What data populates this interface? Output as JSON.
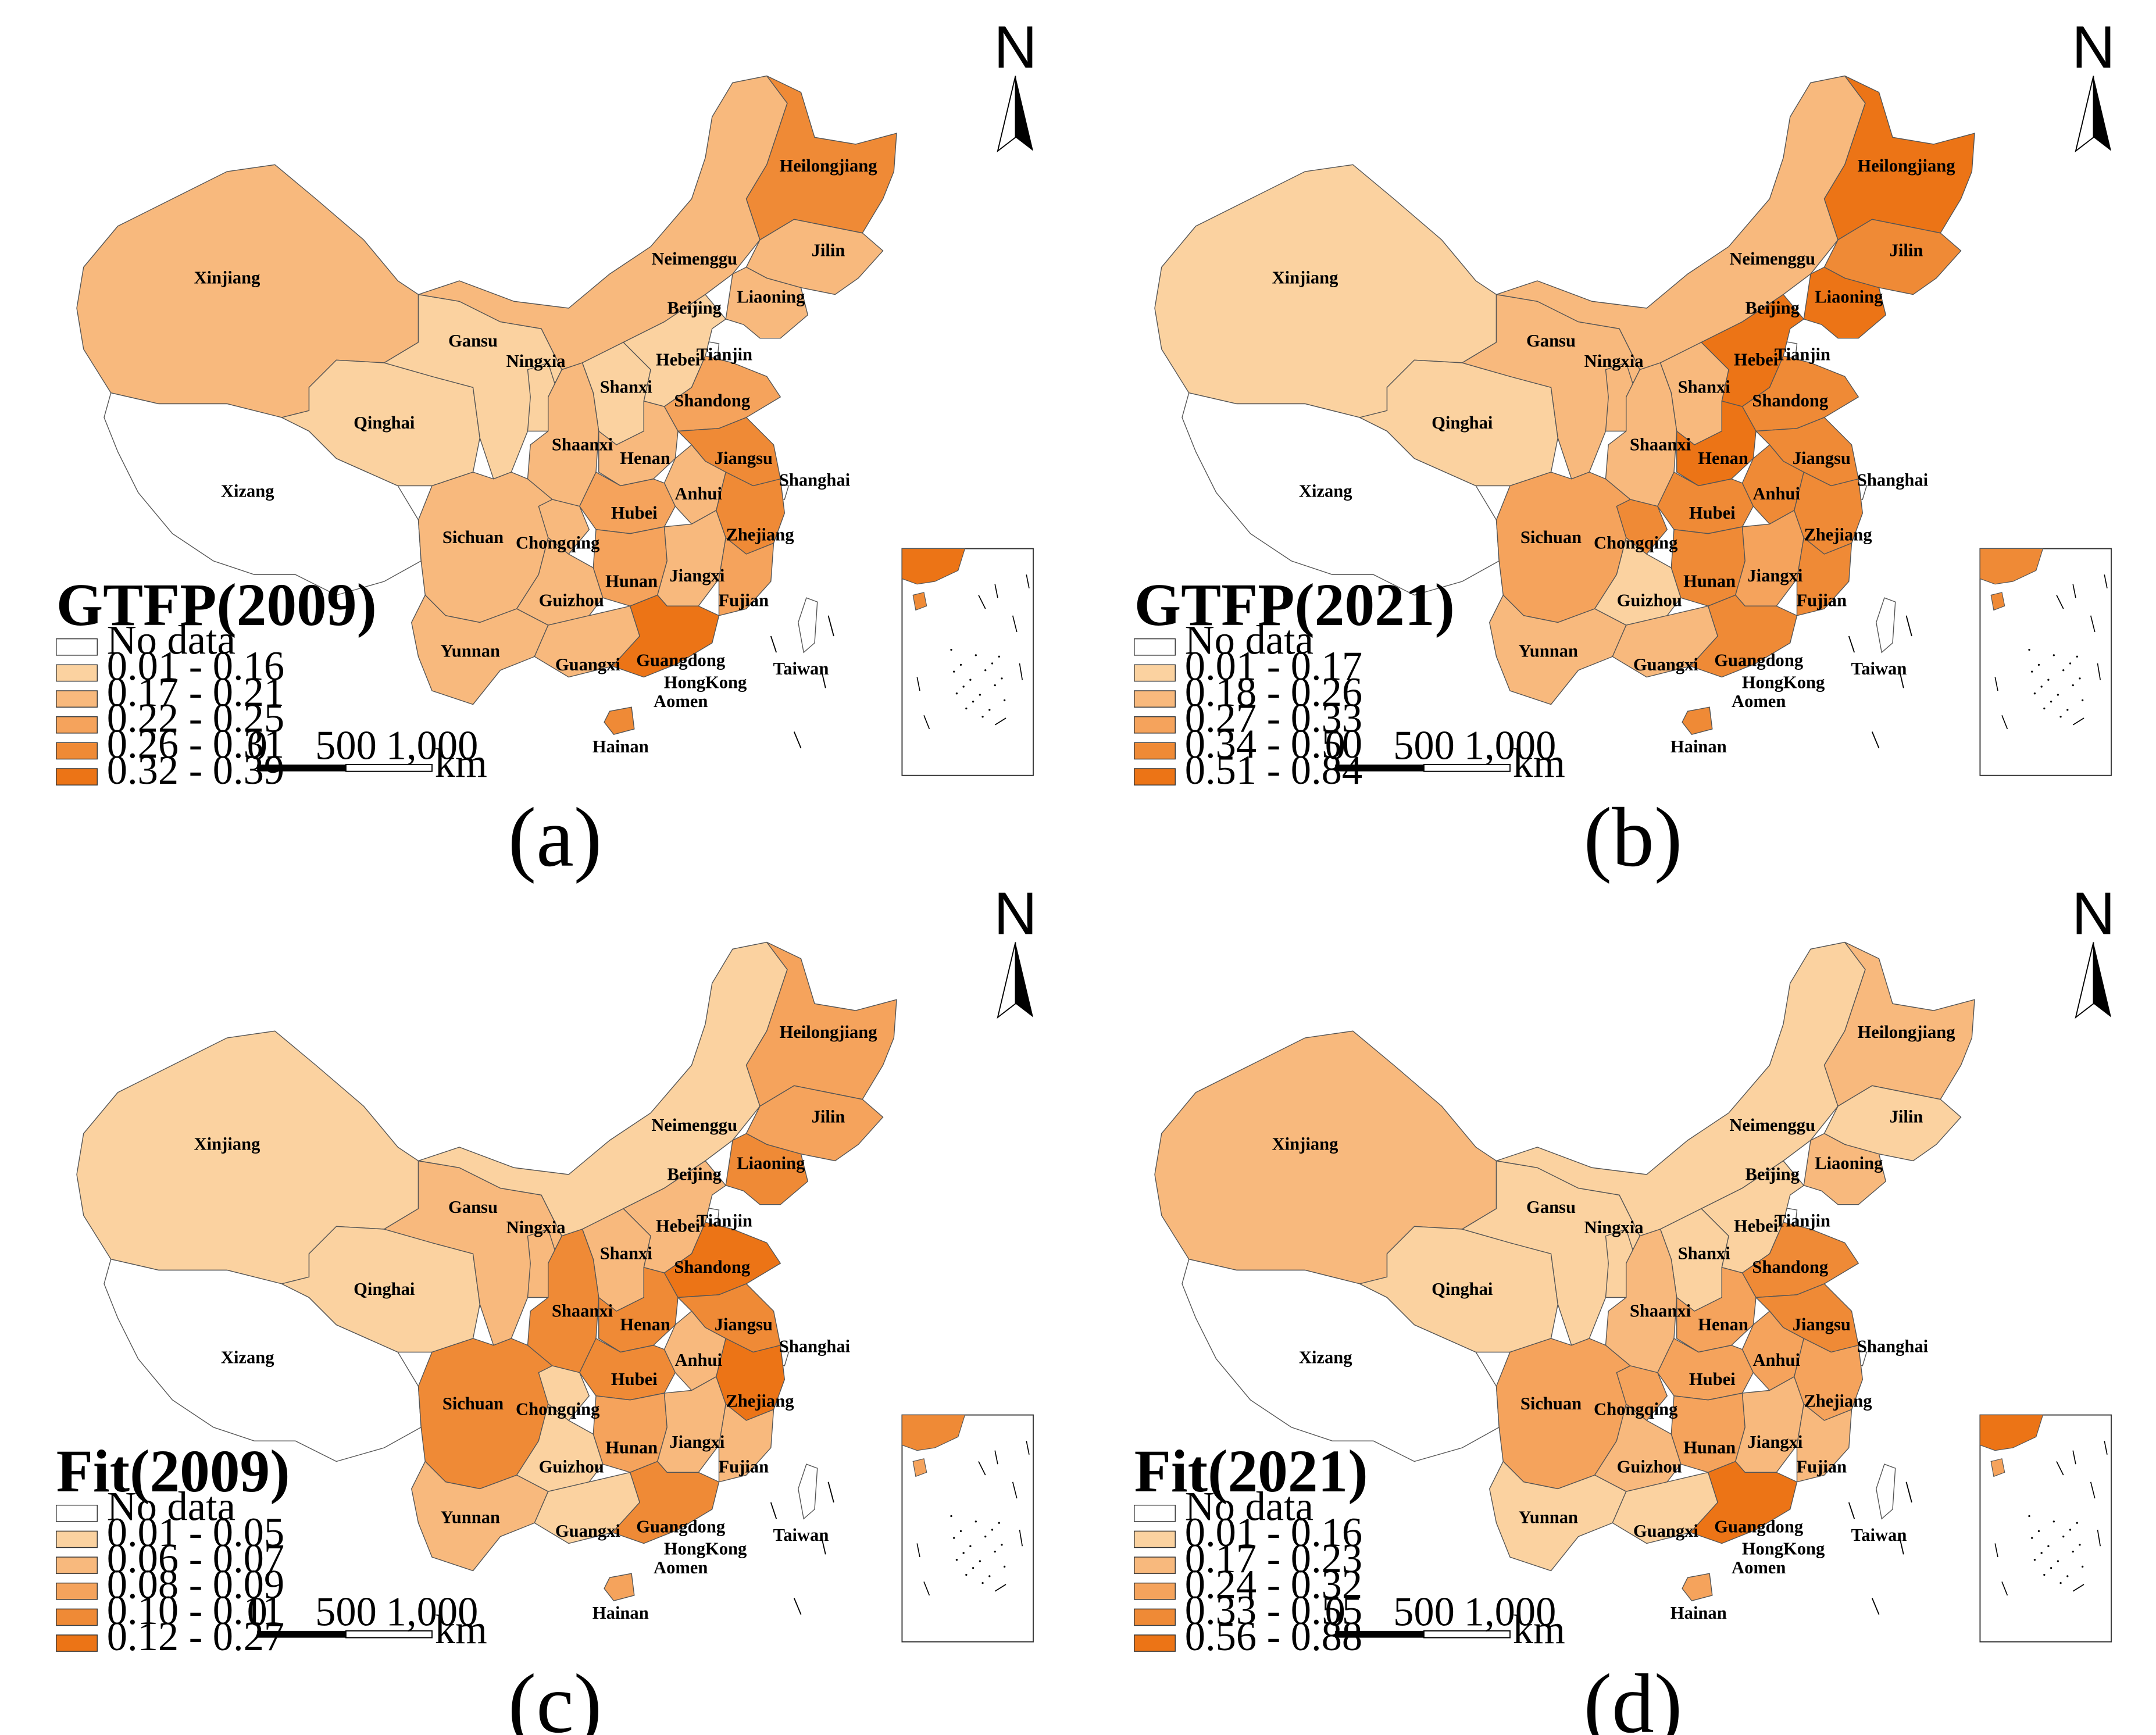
{
  "colors": {
    "no_data": "#ffffff",
    "c1": "#fbd2a0",
    "c2": "#f8b97d",
    "c3": "#f5a35c",
    "c4": "#ef8a36",
    "c5": "#ec7416",
    "border": "#555555"
  },
  "compass_label": "N",
  "scale_bar": {
    "ticks": [
      "0",
      "500",
      "1,000"
    ],
    "unit": "km"
  },
  "panels": [
    {
      "id": "a",
      "caption": "(a)",
      "legend_title": "GTFP(2009)",
      "legend": [
        {
          "label": "No data",
          "color_key": "no_data"
        },
        {
          "label": "0.01 - 0.16",
          "color_key": "c1"
        },
        {
          "label": "0.17 - 0.21",
          "color_key": "c2"
        },
        {
          "label": "0.22 - 0.25",
          "color_key": "c3"
        },
        {
          "label": "0.26 - 0.31",
          "color_key": "c4"
        },
        {
          "label": "0.32 - 0.39",
          "color_key": "c5"
        }
      ],
      "classes": {
        "Xinjiang": "c2",
        "Xizang": "no_data",
        "Qinghai": "c1",
        "Gansu": "c1",
        "Ningxia": "c1",
        "Neimenggu": "c2",
        "Heilongjiang": "c4",
        "Jilin": "c2",
        "Liaoning": "c2",
        "Beijing": "c4",
        "Hebei": "c1",
        "Shanxi": "c1",
        "Shaanxi": "c2",
        "Shandong": "c3",
        "Henan": "c2",
        "Jiangsu": "c4",
        "Anhui": "c2",
        "Hubei": "c3",
        "Sichuan": "c2",
        "Chongqing": "c2",
        "Hunan": "c3",
        "Jiangxi": "c2",
        "Zhejiang": "c4",
        "Fujian": "c3",
        "Guizhou": "c2",
        "Yunnan": "c2",
        "Guangxi": "c2",
        "Guangdong": "c5",
        "Hainan": "c4",
        "Taiwan": "no_data"
      }
    },
    {
      "id": "b",
      "caption": "(b)",
      "legend_title": "GTFP(2021)",
      "legend": [
        {
          "label": "No data",
          "color_key": "no_data"
        },
        {
          "label": "0.01 - 0.17",
          "color_key": "c1"
        },
        {
          "label": "0.18 - 0.26",
          "color_key": "c2"
        },
        {
          "label": "0.27 - 0.33",
          "color_key": "c3"
        },
        {
          "label": "0.34 - 0.50",
          "color_key": "c4"
        },
        {
          "label": "0.51 - 0.84",
          "color_key": "c5"
        }
      ],
      "classes": {
        "Xinjiang": "c1",
        "Xizang": "no_data",
        "Qinghai": "c1",
        "Gansu": "c2",
        "Ningxia": "c2",
        "Neimenggu": "c2",
        "Heilongjiang": "c5",
        "Jilin": "c4",
        "Liaoning": "c5",
        "Beijing": "c5",
        "Hebei": "c5",
        "Shanxi": "c2",
        "Shaanxi": "c2",
        "Shandong": "c4",
        "Henan": "c5",
        "Jiangsu": "c4",
        "Anhui": "c4",
        "Hubei": "c4",
        "Sichuan": "c3",
        "Chongqing": "c4",
        "Hunan": "c4",
        "Jiangxi": "c3",
        "Zhejiang": "c4",
        "Fujian": "c4",
        "Guizhou": "c1",
        "Yunnan": "c2",
        "Guangxi": "c2",
        "Guangdong": "c4",
        "Hainan": "c4",
        "Taiwan": "no_data"
      }
    },
    {
      "id": "c",
      "caption": "(c)",
      "legend_title": "Fit(2009)",
      "legend": [
        {
          "label": "No data",
          "color_key": "no_data"
        },
        {
          "label": "0.01 - 0.05",
          "color_key": "c1"
        },
        {
          "label": "0.06 - 0.07",
          "color_key": "c2"
        },
        {
          "label": "0.08 - 0.09",
          "color_key": "c3"
        },
        {
          "label": "0.10 - 0.11",
          "color_key": "c4"
        },
        {
          "label": "0.12 - 0.27",
          "color_key": "c5"
        }
      ],
      "classes": {
        "Xinjiang": "c1",
        "Xizang": "no_data",
        "Qinghai": "c1",
        "Gansu": "c2",
        "Ningxia": "c2",
        "Neimenggu": "c1",
        "Heilongjiang": "c3",
        "Jilin": "c3",
        "Liaoning": "c4",
        "Beijing": "c4",
        "Hebei": "c2",
        "Shanxi": "c2",
        "Shaanxi": "c4",
        "Shandong": "c5",
        "Henan": "c4",
        "Jiangsu": "c4",
        "Anhui": "c2",
        "Hubei": "c4",
        "Sichuan": "c4",
        "Chongqing": "c1",
        "Hunan": "c3",
        "Jiangxi": "c2",
        "Zhejiang": "c5",
        "Fujian": "c2",
        "Guizhou": "c1",
        "Yunnan": "c2",
        "Guangxi": "c1",
        "Guangdong": "c4",
        "Hainan": "c3",
        "Taiwan": "no_data"
      }
    },
    {
      "id": "d",
      "caption": "(d)",
      "legend_title": "Fit(2021)",
      "legend": [
        {
          "label": "No data",
          "color_key": "no_data"
        },
        {
          "label": "0.01 - 0.16",
          "color_key": "c1"
        },
        {
          "label": "0.17 - 0.23",
          "color_key": "c2"
        },
        {
          "label": "0.24 - 0.32",
          "color_key": "c3"
        },
        {
          "label": "0.33 - 0.55",
          "color_key": "c4"
        },
        {
          "label": "0.56 - 0.88",
          "color_key": "c5"
        }
      ],
      "classes": {
        "Xinjiang": "c2",
        "Xizang": "no_data",
        "Qinghai": "c1",
        "Gansu": "c1",
        "Ningxia": "c1",
        "Neimenggu": "c1",
        "Heilongjiang": "c2",
        "Jilin": "c1",
        "Liaoning": "c2",
        "Beijing": "c3",
        "Hebei": "c1",
        "Shanxi": "c1",
        "Shaanxi": "c2",
        "Shandong": "c4",
        "Henan": "c3",
        "Jiangsu": "c4",
        "Anhui": "c3",
        "Hubei": "c3",
        "Sichuan": "c3",
        "Chongqing": "c3",
        "Hunan": "c3",
        "Jiangxi": "c2",
        "Zhejiang": "c3",
        "Fujian": "c2",
        "Guizhou": "c2",
        "Yunnan": "c1",
        "Guangxi": "c1",
        "Guangdong": "c5",
        "Hainan": "c3",
        "Taiwan": "no_data"
      }
    }
  ],
  "provinces": [
    {
      "key": "Xinjiang",
      "label": "Xinjiang"
    },
    {
      "key": "Xizang",
      "label": "Xizang"
    },
    {
      "key": "Qinghai",
      "label": "Qinghai"
    },
    {
      "key": "Gansu",
      "label": "Gansu"
    },
    {
      "key": "Ningxia",
      "label": "Ningxia"
    },
    {
      "key": "Neimenggu",
      "label": "Neimenggu"
    },
    {
      "key": "Heilongjiang",
      "label": "Heilongjiang"
    },
    {
      "key": "Jilin",
      "label": "Jilin"
    },
    {
      "key": "Liaoning",
      "label": "Liaoning"
    },
    {
      "key": "Beijing",
      "label": "Beijing"
    },
    {
      "key": "Tianjin",
      "label": "Tianjin"
    },
    {
      "key": "Hebei",
      "label": "Hebei"
    },
    {
      "key": "Shanxi",
      "label": "Shanxi"
    },
    {
      "key": "Shaanxi",
      "label": "Shaanxi"
    },
    {
      "key": "Shandong",
      "label": "Shandong"
    },
    {
      "key": "Henan",
      "label": "Henan"
    },
    {
      "key": "Jiangsu",
      "label": "Jiangsu"
    },
    {
      "key": "Shanghai",
      "label": "Shanghai"
    },
    {
      "key": "Anhui",
      "label": "Anhui"
    },
    {
      "key": "Hubei",
      "label": "Hubei"
    },
    {
      "key": "Sichuan",
      "label": "Sichuan"
    },
    {
      "key": "Chongqing",
      "label": "Chongqing"
    },
    {
      "key": "Hunan",
      "label": "Hunan"
    },
    {
      "key": "Jiangxi",
      "label": "Jiangxi"
    },
    {
      "key": "Zhejiang",
      "label": "Zhejiang"
    },
    {
      "key": "Fujian",
      "label": "Fujian"
    },
    {
      "key": "Guizhou",
      "label": "Guizhou"
    },
    {
      "key": "Yunnan",
      "label": "Yunnan"
    },
    {
      "key": "Guangxi",
      "label": "Guangxi"
    },
    {
      "key": "Guangdong",
      "label": "Guangdong"
    },
    {
      "key": "HongKong",
      "label": "HongKong"
    },
    {
      "key": "Aomen",
      "label": "Aomen"
    },
    {
      "key": "Hainan",
      "label": "Hainan"
    },
    {
      "key": "Taiwan",
      "label": "Taiwan"
    }
  ]
}
